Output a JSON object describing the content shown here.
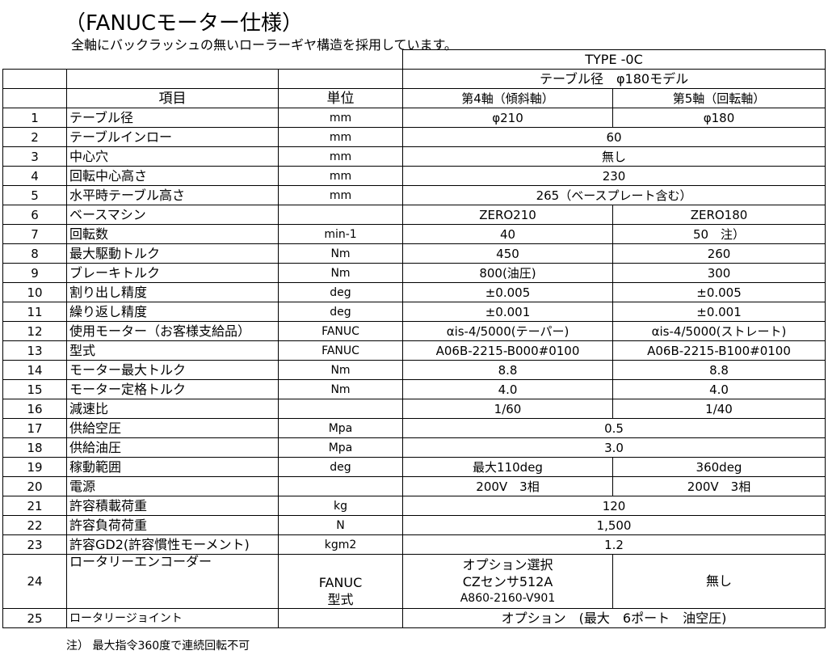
{
  "title": "（FANUCモーター仕様）",
  "subtitle": "全軸にバックラッシュの無いローラーギヤ構造を採用しています。",
  "header": {
    "type": "TYPE -0C",
    "model": "テーブル径　φ180モデル",
    "col_item": "項目",
    "col_unit": "単位",
    "col_axis4": "第4軸（傾斜軸）",
    "col_axis5": "第5軸（回転軸）"
  },
  "rows": [
    {
      "no": "1",
      "item": "テーブル径",
      "unit": "mm",
      "a4": "φ210",
      "a5": "φ180"
    },
    {
      "no": "2",
      "item": "テーブルインロー",
      "unit": "mm",
      "both": "60"
    },
    {
      "no": "3",
      "item": "中心穴",
      "unit": "mm",
      "both": "無し"
    },
    {
      "no": "4",
      "item": "回転中心高さ",
      "unit": "mm",
      "both": "230"
    },
    {
      "no": "5",
      "item": "水平時テーブル高さ",
      "unit": "mm",
      "both": "265（ベースプレート含む）"
    },
    {
      "no": "6",
      "item": "ベースマシン",
      "unit": "",
      "a4": "ZERO210",
      "a5": "ZERO180"
    },
    {
      "no": "7",
      "item": "回転数",
      "unit": "min-1",
      "a4": "40",
      "a5": "50　注）"
    },
    {
      "no": "8",
      "item": "最大駆動トルク",
      "unit": "Nm",
      "a4": "450",
      "a5": "260"
    },
    {
      "no": "9",
      "item": "ブレーキトルク",
      "unit": "Nm",
      "a4": "800(油圧)",
      "a5": "300"
    },
    {
      "no": "10",
      "item": "割り出し精度",
      "unit": "deg",
      "a4": "±0.005",
      "a5": "±0.005"
    },
    {
      "no": "11",
      "item": "繰り返し精度",
      "unit": "deg",
      "a4": "±0.001",
      "a5": "±0.001"
    },
    {
      "no": "12",
      "item": "使用モーター（お客様支給品）",
      "unit": "FANUC",
      "a4": "αis-4/5000(テーパー)",
      "a5": "αis-4/5000(ストレート)"
    },
    {
      "no": "13",
      "item": "型式",
      "unit": "FANUC",
      "a4": "A06B-2215-B000#0100",
      "a5": "A06B-2215-B100#0100"
    },
    {
      "no": "14",
      "item": "モーター最大トルク",
      "unit": "Nm",
      "a4": "8.8",
      "a5": "8.8"
    },
    {
      "no": "15",
      "item": "モーター定格トルク",
      "unit": "Nm",
      "a4": "4.0",
      "a5": "4.0"
    },
    {
      "no": "16",
      "item": "減速比",
      "unit": "",
      "a4": "1/60",
      "a5": "1/40"
    },
    {
      "no": "17",
      "item": "供給空圧",
      "unit": "Mpa",
      "both": "0.5"
    },
    {
      "no": "18",
      "item": "供給油圧",
      "unit": "Mpa",
      "both": "3.0"
    },
    {
      "no": "19",
      "item": "稼動範囲",
      "unit": "deg",
      "a4": "最大110deg",
      "a5": "360deg"
    },
    {
      "no": "20",
      "item": "電源",
      "unit": "",
      "a4": "200V　3相",
      "a5": "200V　3相"
    },
    {
      "no": "21",
      "item": "許容積載荷重",
      "unit": "kg",
      "both": "120"
    },
    {
      "no": "22",
      "item": "許容負荷荷重",
      "unit": "N",
      "both": "1,500"
    },
    {
      "no": "23",
      "item": "許容GD2(許容慣性モーメント)",
      "unit": "kgm2",
      "both": "1.2"
    }
  ],
  "row24": {
    "no": "24",
    "item": "ロータリーエンコーダー",
    "unit1": "FANUC",
    "unit2": "型式",
    "a4_1": "オプション選択",
    "a4_2": "CZセンサ512A",
    "a4_3": "A860-2160-V901",
    "a5": "無し"
  },
  "row25": {
    "no": "25",
    "item": "ロータリージョイント",
    "both": "オプション　(最大　6ポート　油空圧)"
  },
  "note": "注）  最大指令360度で連続回転不可"
}
